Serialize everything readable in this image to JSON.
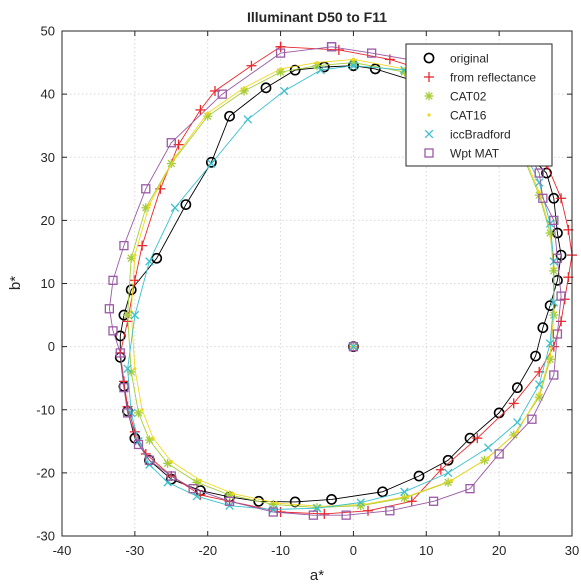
{
  "chart_data": {
    "type": "scatter",
    "title": "Illuminant D50 to F11",
    "xlabel": "a*",
    "ylabel": "b*",
    "xlim": [
      -40,
      30
    ],
    "ylim": [
      -30,
      50
    ],
    "xticks": [
      -40,
      -30,
      -20,
      -10,
      0,
      10,
      20,
      30
    ],
    "yticks": [
      -30,
      -20,
      -10,
      0,
      10,
      20,
      30,
      40,
      50
    ],
    "grid": true,
    "legend_position": "top-right",
    "series": [
      {
        "name": "original",
        "marker": "circle",
        "color": "#000000",
        "x": [
          0,
          3,
          8,
          13,
          19,
          23,
          26.5,
          27.5,
          28,
          28.5,
          28,
          27,
          26,
          25,
          22.5,
          20,
          16,
          13,
          9,
          4,
          -3,
          -8,
          -13,
          -17,
          -21,
          -25,
          -28,
          -30,
          -31,
          -31.5,
          -32,
          -32,
          -31.5,
          -30.5,
          -27,
          -23,
          -19.5,
          -17,
          -12,
          -8,
          -4,
          0
        ],
        "y": [
          44.5,
          44,
          42.2,
          40.5,
          36,
          31.5,
          27.5,
          23.5,
          18,
          14.5,
          10.5,
          6.5,
          3,
          -1.5,
          -6.5,
          -10.5,
          -14.5,
          -18,
          -20.5,
          -23,
          -24.2,
          -24.6,
          -24.5,
          -23.8,
          -22.8,
          -21,
          -18,
          -14.5,
          -10.2,
          -6.3,
          -1.7,
          1.7,
          5,
          9,
          14,
          22.5,
          29.2,
          36.5,
          41,
          43.8,
          44.3,
          44.5
        ]
      },
      {
        "name": "from reflectance",
        "marker": "plus",
        "color": "#e8282c",
        "x": [
          -10,
          -2,
          5,
          12,
          18,
          23,
          26.5,
          28.5,
          29.5,
          30,
          29.5,
          29,
          28.5,
          27.5,
          25.5,
          22,
          17,
          12,
          8,
          2,
          -4,
          -10,
          -17,
          -21,
          -25,
          -28.5,
          -30,
          -31,
          -31.5,
          -32,
          -31,
          -30,
          -29,
          -26.5,
          -24,
          -21,
          -19,
          -14,
          -10
        ],
        "y": [
          47.5,
          47,
          45.5,
          43,
          39.5,
          34,
          29,
          23.5,
          18.5,
          14.5,
          11,
          7.5,
          4,
          0,
          -4,
          -9,
          -14.5,
          -19.5,
          -24.5,
          -26,
          -26.5,
          -26.2,
          -24.5,
          -23.5,
          -20.5,
          -17,
          -13.5,
          -9.5,
          -5.5,
          -1,
          4,
          10.5,
          16,
          25,
          32,
          37.5,
          40.5,
          44.5,
          47.5
        ]
      },
      {
        "name": "CAT02",
        "marker": "asterisk",
        "color": "#a5cd39",
        "x": [
          0,
          -5,
          -10,
          -15,
          -20,
          -25,
          -28.5,
          -30.5,
          -31,
          -30.5,
          -29.5,
          -28,
          -25.5,
          -21.5,
          -17,
          -11,
          -5,
          1,
          7,
          13,
          18,
          22,
          25.5,
          27,
          27.5,
          27.5,
          27,
          25.5,
          23,
          19,
          13,
          7,
          0
        ],
        "y": [
          45,
          44.5,
          43.5,
          40.5,
          36.5,
          29,
          22,
          14,
          5,
          -4,
          -10.5,
          -14.8,
          -18.5,
          -21.5,
          -23.5,
          -25,
          -25.5,
          -25.2,
          -24,
          -21.5,
          -18,
          -14,
          -8,
          -2,
          5,
          12,
          18,
          24,
          31,
          36.5,
          41,
          43.5,
          45
        ]
      },
      {
        "name": "CAT16",
        "marker": "dot",
        "color": "#f2d71f",
        "x": [
          0,
          -5,
          -10,
          -15,
          -20,
          -24.5,
          -28,
          -30,
          -30.5,
          -30,
          -29,
          -27.5,
          -25,
          -21,
          -16.5,
          -10.5,
          -4.5,
          1.5,
          7.5,
          13.5,
          18.5,
          22.5,
          25.5,
          27,
          27.5,
          27.5,
          27,
          25.5,
          23,
          19,
          13,
          7,
          0
        ],
        "y": [
          45.5,
          45,
          44,
          41,
          37,
          30,
          22.5,
          14.5,
          5.5,
          -3.5,
          -10,
          -14.5,
          -18.2,
          -21.2,
          -23.3,
          -24.8,
          -25.3,
          -25,
          -23.7,
          -21.2,
          -17.6,
          -13.5,
          -7.5,
          -1.5,
          5.5,
          12.5,
          18.5,
          24.5,
          31.5,
          37,
          41.5,
          44,
          45.5
        ]
      },
      {
        "name": "iccBradford",
        "marker": "x",
        "color": "#3ac1cd",
        "x": [
          0,
          -4.5,
          -9.5,
          -14.5,
          -19.5,
          -24.5,
          -28,
          -30,
          -31,
          -30.5,
          -29.5,
          -28,
          -25.5,
          -21.5,
          -17,
          -11,
          -5,
          1,
          7,
          13,
          18.5,
          22.5,
          25.5,
          27,
          27.5,
          27.5,
          27,
          25.5,
          23,
          19,
          13,
          7,
          0
        ],
        "y": [
          44.5,
          43.8,
          40.5,
          36,
          29,
          22,
          13.5,
          5,
          -3.5,
          -10.5,
          -15,
          -18.7,
          -21.5,
          -23.7,
          -25.2,
          -25.8,
          -25.6,
          -24.7,
          -23,
          -20,
          -16,
          -12,
          -6,
          0.5,
          7,
          13.5,
          19.5,
          26,
          32,
          37,
          41.5,
          43.8,
          44.5
        ]
      },
      {
        "name": "Wpt MAT",
        "marker": "square",
        "color": "#9a5aa6",
        "x": [
          -3,
          -10,
          -18,
          -25,
          -28.5,
          -31.5,
          -33,
          -33.5,
          -33,
          -32,
          -31.5,
          -31,
          -29.5,
          -28,
          -25,
          -22,
          -17,
          -11,
          -5.5,
          -1,
          5,
          11,
          16,
          20,
          24.5,
          27.5,
          28,
          28.5,
          28,
          27.5,
          26,
          25.5,
          23,
          17,
          10,
          2.5,
          -3
        ],
        "y": [
          47.5,
          46.5,
          40,
          32.3,
          25,
          16,
          10.5,
          6,
          2.5,
          -1,
          -6.5,
          -10.5,
          -15.5,
          -18,
          -20.5,
          -22.5,
          -24.5,
          -26.2,
          -26.7,
          -26.7,
          -26,
          -24.5,
          -22.5,
          -17,
          -11.5,
          -4.5,
          2,
          8,
          14,
          20,
          23.5,
          27.5,
          33,
          41,
          45,
          46.5,
          47.5
        ]
      }
    ],
    "center_points": {
      "x": 0,
      "y": 0
    }
  }
}
